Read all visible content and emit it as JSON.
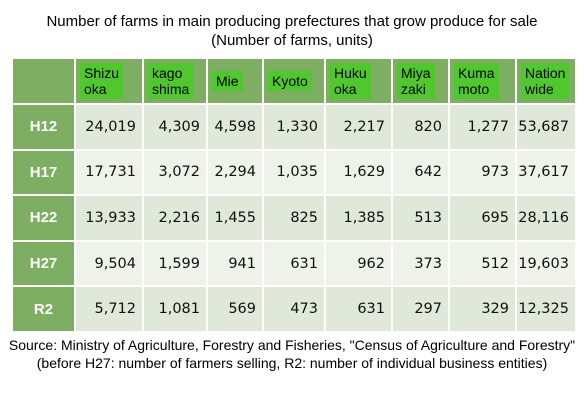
{
  "title_line1": "Number of farms in main producing prefectures that grow produce for sale",
  "title_line2": "(Number of farms, units)",
  "source": "Source: Ministry of Agriculture, Forestry and Fisheries, \"Census of Agriculture and Forestry\" (before H27: number of farmers selling, R2: number of individual business entities)",
  "colors": {
    "header_bg": "#7dae61",
    "label_bg": "#4fc82d",
    "row_odd": "#dfe8d9",
    "row_even": "#eef3ea"
  },
  "chart_data": {
    "type": "table",
    "columns": [
      [
        "Shizu",
        "oka"
      ],
      [
        "kago",
        "shima"
      ],
      [
        "Mie"
      ],
      [
        "Kyoto"
      ],
      [
        "Huku",
        "oka"
      ],
      [
        "Miya",
        "zaki"
      ],
      [
        "Kuma",
        "moto"
      ],
      [
        "Nation",
        "wide"
      ]
    ],
    "rows": [
      {
        "label": "H12",
        "values": [
          "24,019",
          "4,309",
          "4,598",
          "1,330",
          "2,217",
          "820",
          "1,277",
          "53,687"
        ]
      },
      {
        "label": "H17",
        "values": [
          "17,731",
          "3,072",
          "2,294",
          "1,035",
          "1,629",
          "642",
          "973",
          "37,617"
        ]
      },
      {
        "label": "H22",
        "values": [
          "13,933",
          "2,216",
          "1,455",
          "825",
          "1,385",
          "513",
          "695",
          "28,116"
        ]
      },
      {
        "label": "H27",
        "values": [
          "9,504",
          "1,599",
          "941",
          "631",
          "962",
          "373",
          "512",
          "19,603"
        ]
      },
      {
        "label": "R2",
        "values": [
          "5,712",
          "1,081",
          "569",
          "473",
          "631",
          "297",
          "329",
          "12,325"
        ]
      }
    ]
  }
}
